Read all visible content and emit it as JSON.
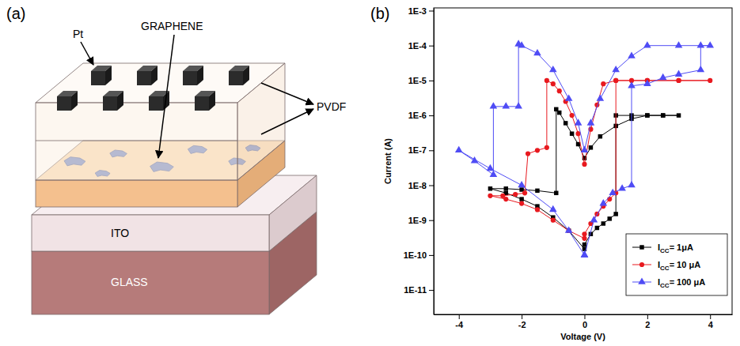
{
  "diagram": {
    "panel_label": "(a)",
    "labels": {
      "pt": "Pt",
      "graphene": "GRAPHENE",
      "pvdf": "PVDF",
      "ito": "ITO",
      "glass": "GLASS"
    }
  },
  "chart_data": {
    "type": "line",
    "panel_label": "(b)",
    "x_label": "Voltage (V)",
    "y_label": "Current (A)",
    "log": "y",
    "legend": "lower right",
    "xlim": [
      -4.8,
      4.7
    ],
    "xticks": [
      -4,
      -2,
      0,
      2,
      4
    ],
    "ylim": [
      2e-12,
      0.0012
    ],
    "yticks": [
      {
        "value": 1e-11,
        "label": "1E-11"
      },
      {
        "value": 1e-10,
        "label": "1E-10"
      },
      {
        "value": 1e-09,
        "label": "1E-9"
      },
      {
        "value": 1e-08,
        "label": "1E-8"
      },
      {
        "value": 1e-07,
        "label": "1E-7"
      },
      {
        "value": 1e-06,
        "label": "1E-6"
      },
      {
        "value": 1e-05,
        "label": "1E-5"
      },
      {
        "value": 0.0001,
        "label": "1E-4"
      },
      {
        "value": 0.001,
        "label": "1E-3"
      }
    ],
    "series": [
      {
        "name": "ICC= 1μA",
        "color": "#000000",
        "marker": "square",
        "x": [
          0,
          0.2,
          0.4,
          0.6,
          0.8,
          1.0,
          1.0,
          1.5,
          2,
          2.5,
          3,
          2.5,
          2,
          1.5,
          1,
          0.5,
          0.2,
          0,
          -0.2,
          -0.4,
          -0.6,
          -0.8,
          -0.9,
          -0.9,
          -1.5,
          -2,
          -2.5,
          -3,
          -2.5,
          -2,
          -1.5,
          -1,
          -0.5,
          0
        ],
        "values": [
          2e-10,
          4e-10,
          6e-10,
          8e-10,
          1.1e-09,
          1.5e-09,
          1e-06,
          1e-06,
          1e-06,
          1e-06,
          1e-06,
          1e-06,
          1e-06,
          8e-07,
          5e-07,
          2.5e-07,
          1.2e-07,
          6e-08,
          1.5e-07,
          3e-07,
          6e-07,
          1.2e-06,
          1.5e-06,
          6e-09,
          7e-09,
          7.5e-09,
          8e-09,
          8e-09,
          6e-09,
          4e-09,
          2.5e-09,
          1.2e-09,
          5e-10,
          1.5e-10
        ]
      },
      {
        "name": "ICC= 10 μA",
        "color": "#e8191f",
        "marker": "circle",
        "x": [
          0,
          0.2,
          0.4,
          0.6,
          0.8,
          1.0,
          1.0,
          1.5,
          2,
          3,
          4,
          3,
          2,
          1,
          0.6,
          0.4,
          0.2,
          0,
          -0.2,
          -0.4,
          -0.6,
          -0.8,
          -1.0,
          -1.2,
          -1.2,
          -1.5,
          -1.8,
          -1.9,
          -2.2,
          -2.6,
          -3,
          -2.5,
          -2,
          -1.5,
          -1,
          -0.5,
          0
        ],
        "values": [
          4e-10,
          8e-10,
          1.5e-09,
          2.5e-09,
          4e-09,
          6e-09,
          1e-05,
          1e-05,
          1e-05,
          1e-05,
          1e-05,
          1e-05,
          1e-05,
          1e-05,
          8e-06,
          2e-06,
          4e-07,
          4e-08,
          3e-07,
          1e-06,
          2.5e-06,
          5e-06,
          8e-06,
          1e-05,
          1.2e-07,
          1e-07,
          8e-08,
          6e-09,
          5.5e-09,
          5e-09,
          5e-09,
          4e-09,
          3e-09,
          2e-09,
          1e-09,
          5e-10,
          3e-10
        ]
      },
      {
        "name": "ICC= 100 μA",
        "color": "#4f4cf5",
        "marker": "triangle",
        "x": [
          0,
          0.3,
          0.6,
          0.9,
          1.2,
          1.5,
          1.5,
          2,
          2.5,
          3,
          3.7,
          3.7,
          4,
          3,
          2,
          1.5,
          1,
          0.5,
          0.2,
          0,
          -0.2,
          -0.5,
          -1,
          -1.5,
          -2,
          -2.1,
          -2.1,
          -2.5,
          -2.9,
          -2.9,
          -3.5,
          -4,
          -3,
          -2,
          -1,
          -0.5,
          0
        ],
        "values": [
          1e-10,
          1e-09,
          3e-09,
          6e-09,
          8e-09,
          1e-08,
          7e-06,
          8e-06,
          1.2e-05,
          1.5e-05,
          2e-05,
          0.0001,
          0.0001,
          0.0001,
          0.0001,
          5e-05,
          2e-05,
          3e-06,
          6e-07,
          1e-07,
          6e-07,
          3e-06,
          2e-05,
          6e-05,
          0.0001,
          0.00011,
          1.8e-06,
          1.8e-06,
          1.8e-06,
          2e-08,
          5e-08,
          1e-07,
          3e-08,
          1e-08,
          2e-09,
          5e-10,
          1e-10
        ]
      }
    ]
  }
}
